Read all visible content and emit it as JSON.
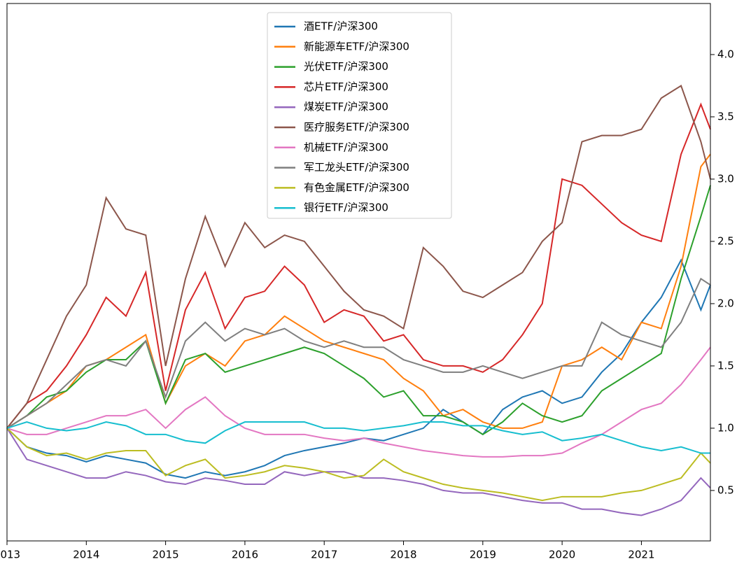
{
  "chart_data": {
    "type": "line",
    "x": [
      2013.0,
      2013.25,
      2013.5,
      2013.75,
      2014.0,
      2014.25,
      2014.5,
      2014.75,
      2015.0,
      2015.25,
      2015.5,
      2015.75,
      2016.0,
      2016.25,
      2016.5,
      2016.75,
      2017.0,
      2017.25,
      2017.5,
      2017.75,
      2018.0,
      2018.25,
      2018.5,
      2018.75,
      2019.0,
      2019.25,
      2019.5,
      2019.75,
      2020.0,
      2020.25,
      2020.5,
      2020.75,
      2021.0,
      2021.25,
      2021.5,
      2021.75,
      2021.87
    ],
    "xlim": [
      2013.0,
      2021.87
    ],
    "xticks": [
      2013,
      2014,
      2015,
      2016,
      2017,
      2018,
      2019,
      2020,
      2021
    ],
    "ylim": [
      0.095,
      4.41
    ],
    "yticks": [
      0.5,
      {
        "value": 1,
        "label": "1.0"
      },
      1.5,
      {
        "value": 2,
        "label": "2.0"
      },
      2.5,
      {
        "value": 3,
        "label": "3.0"
      },
      3.5,
      {
        "value": 4,
        "label": "4.0"
      }
    ],
    "legend": "upper center",
    "series": [
      {
        "name": "酒ETF/沪深300",
        "color": "#1f77b4",
        "values": [
          1.0,
          0.85,
          0.8,
          0.78,
          0.73,
          0.78,
          0.75,
          0.72,
          0.63,
          0.6,
          0.65,
          0.62,
          0.65,
          0.7,
          0.78,
          0.82,
          0.85,
          0.88,
          0.92,
          0.9,
          0.95,
          1.0,
          1.15,
          1.05,
          0.95,
          1.15,
          1.25,
          1.3,
          1.2,
          1.25,
          1.45,
          1.6,
          1.85,
          2.05,
          2.35,
          1.95,
          2.15
        ]
      },
      {
        "name": "新能源车ETF/沪深300",
        "color": "#ff7f0e",
        "values": [
          1.0,
          1.1,
          1.2,
          1.3,
          1.5,
          1.55,
          1.65,
          1.75,
          1.2,
          1.5,
          1.6,
          1.5,
          1.7,
          1.75,
          1.9,
          1.8,
          1.7,
          1.65,
          1.6,
          1.55,
          1.4,
          1.3,
          1.1,
          1.15,
          1.05,
          1.0,
          1.0,
          1.05,
          1.5,
          1.55,
          1.65,
          1.55,
          1.85,
          1.8,
          2.3,
          3.1,
          3.2
        ]
      },
      {
        "name": "光伏ETF/沪深300",
        "color": "#2ca02c",
        "values": [
          1.0,
          1.1,
          1.25,
          1.3,
          1.45,
          1.55,
          1.55,
          1.7,
          1.2,
          1.55,
          1.6,
          1.45,
          1.5,
          1.55,
          1.6,
          1.65,
          1.6,
          1.5,
          1.4,
          1.25,
          1.3,
          1.1,
          1.1,
          1.05,
          0.95,
          1.05,
          1.2,
          1.1,
          1.05,
          1.1,
          1.3,
          1.4,
          1.5,
          1.6,
          2.2,
          2.7,
          2.95
        ]
      },
      {
        "name": "芯片ETF/沪深300",
        "color": "#d62728",
        "values": [
          1.0,
          1.2,
          1.3,
          1.5,
          1.75,
          2.05,
          1.9,
          2.25,
          1.3,
          1.95,
          2.25,
          1.8,
          2.05,
          2.1,
          2.3,
          2.15,
          1.85,
          1.95,
          1.9,
          1.7,
          1.75,
          1.55,
          1.5,
          1.5,
          1.45,
          1.55,
          1.75,
          2.0,
          3.0,
          2.95,
          2.8,
          2.65,
          2.55,
          2.5,
          3.2,
          3.6,
          3.4
        ]
      },
      {
        "name": "煤炭ETF/沪深300",
        "color": "#9467bd",
        "values": [
          1.0,
          0.75,
          0.7,
          0.65,
          0.6,
          0.6,
          0.65,
          0.62,
          0.57,
          0.55,
          0.6,
          0.58,
          0.55,
          0.55,
          0.65,
          0.62,
          0.65,
          0.65,
          0.6,
          0.6,
          0.58,
          0.55,
          0.5,
          0.48,
          0.48,
          0.45,
          0.42,
          0.4,
          0.4,
          0.35,
          0.35,
          0.32,
          0.3,
          0.35,
          0.42,
          0.6,
          0.52
        ]
      },
      {
        "name": "医疗服务ETF/沪深300",
        "color": "#8c564b",
        "values": [
          1.0,
          1.2,
          1.55,
          1.9,
          2.15,
          2.85,
          2.6,
          2.55,
          1.5,
          2.2,
          2.7,
          2.3,
          2.65,
          2.45,
          2.55,
          2.5,
          2.3,
          2.1,
          1.95,
          1.9,
          1.8,
          2.45,
          2.3,
          2.1,
          2.05,
          2.15,
          2.25,
          2.5,
          2.65,
          3.3,
          3.35,
          3.35,
          3.4,
          3.65,
          3.75,
          3.3,
          3.0
        ]
      },
      {
        "name": "机械ETF/沪深300",
        "color": "#e377c2",
        "values": [
          1.0,
          0.95,
          0.95,
          1.0,
          1.05,
          1.1,
          1.1,
          1.15,
          1.0,
          1.15,
          1.25,
          1.1,
          1.0,
          0.95,
          0.95,
          0.95,
          0.92,
          0.9,
          0.92,
          0.88,
          0.85,
          0.82,
          0.8,
          0.78,
          0.77,
          0.77,
          0.78,
          0.78,
          0.8,
          0.88,
          0.95,
          1.05,
          1.15,
          1.2,
          1.35,
          1.55,
          1.65
        ]
      },
      {
        "name": "军工龙头ETF/沪深300",
        "color": "#7f7f7f",
        "values": [
          1.0,
          1.1,
          1.2,
          1.35,
          1.5,
          1.55,
          1.5,
          1.7,
          1.25,
          1.7,
          1.85,
          1.7,
          1.8,
          1.75,
          1.8,
          1.7,
          1.65,
          1.7,
          1.65,
          1.65,
          1.55,
          1.5,
          1.45,
          1.45,
          1.5,
          1.45,
          1.4,
          1.45,
          1.5,
          1.5,
          1.85,
          1.75,
          1.7,
          1.65,
          1.85,
          2.2,
          2.15
        ]
      },
      {
        "name": "有色金属ETF/沪深300",
        "color": "#bcbd22",
        "values": [
          1.0,
          0.85,
          0.78,
          0.8,
          0.75,
          0.8,
          0.82,
          0.82,
          0.62,
          0.7,
          0.75,
          0.6,
          0.62,
          0.65,
          0.7,
          0.68,
          0.65,
          0.6,
          0.62,
          0.75,
          0.65,
          0.6,
          0.55,
          0.52,
          0.5,
          0.48,
          0.45,
          0.42,
          0.45,
          0.45,
          0.45,
          0.48,
          0.5,
          0.55,
          0.6,
          0.8,
          0.72
        ]
      },
      {
        "name": "银行ETF/沪深300",
        "color": "#17becf",
        "values": [
          1.0,
          1.05,
          1.0,
          0.98,
          1.0,
          1.05,
          1.02,
          0.95,
          0.95,
          0.9,
          0.88,
          0.98,
          1.05,
          1.05,
          1.05,
          1.05,
          1.0,
          1.0,
          0.98,
          1.0,
          1.02,
          1.05,
          1.05,
          1.02,
          1.02,
          0.98,
          0.95,
          0.97,
          0.9,
          0.92,
          0.95,
          0.9,
          0.85,
          0.82,
          0.85,
          0.8,
          0.8
        ]
      }
    ]
  }
}
